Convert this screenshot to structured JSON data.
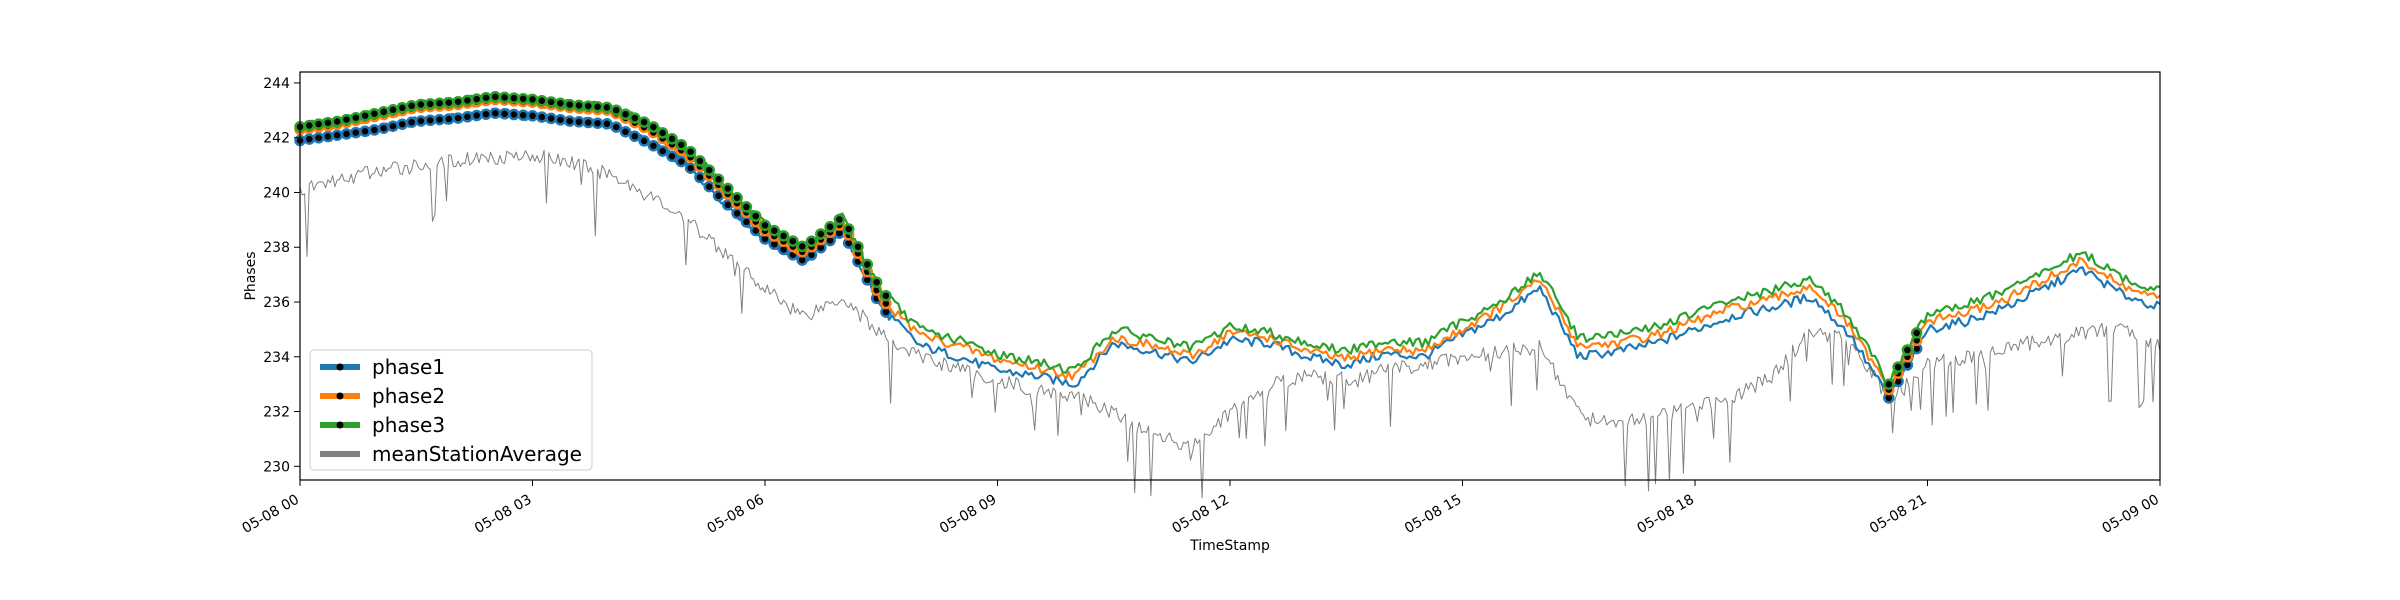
{
  "chart_data": {
    "type": "line",
    "title": "",
    "xlabel": "TimeStamp",
    "ylabel": "Phases",
    "x_range": [
      "05-08 00",
      "05-09 00"
    ],
    "x_ticks": [
      "05-08 00",
      "05-08 03",
      "05-08 06",
      "05-08 09",
      "05-08 12",
      "05-08 15",
      "05-08 18",
      "05-08 21",
      "05-09 00"
    ],
    "ylim": [
      229.5,
      244.4
    ],
    "y_ticks": [
      230,
      232,
      234,
      236,
      238,
      240,
      242,
      244
    ],
    "grid": false,
    "legend_placement": "lower-left",
    "hours": [
      0,
      0.5,
      1,
      1.5,
      2,
      2.5,
      3,
      3.5,
      4,
      4.5,
      5,
      5.5,
      6,
      6.5,
      7,
      7.5,
      8,
      8.5,
      9,
      9.5,
      10,
      10.5,
      11,
      11.5,
      12,
      12.5,
      13,
      13.5,
      14,
      14.5,
      15,
      15.5,
      16,
      16.5,
      17,
      17.5,
      18,
      18.5,
      19,
      19.5,
      20,
      20.5,
      21,
      21.5,
      22,
      22.5,
      23,
      23.5,
      24
    ],
    "series": [
      {
        "name": "phase1",
        "color": "#1f77b4",
        "marker_segments_hours": [
          [
            0,
            7.6
          ],
          [
            20.5,
            20.9
          ]
        ],
        "values": [
          241.9,
          242.1,
          242.3,
          242.6,
          242.7,
          242.9,
          242.8,
          242.6,
          242.5,
          241.8,
          241.0,
          239.6,
          238.3,
          237.5,
          238.6,
          235.8,
          234.4,
          234.0,
          233.5,
          233.3,
          233.0,
          234.5,
          234.2,
          233.8,
          234.6,
          234.5,
          234.0,
          233.7,
          234.1,
          234.0,
          234.8,
          235.5,
          236.5,
          234.0,
          234.2,
          234.5,
          235.0,
          235.5,
          235.8,
          236.2,
          234.8,
          232.5,
          235.0,
          235.3,
          235.8,
          236.5,
          237.2,
          236.3,
          235.8
        ]
      },
      {
        "name": "phase2",
        "color": "#ff7f0e",
        "marker_segments_hours": [
          [
            0,
            7.6
          ],
          [
            20.5,
            20.9
          ]
        ],
        "values": [
          242.3,
          242.5,
          242.8,
          243.1,
          243.2,
          243.4,
          243.3,
          243.1,
          243.0,
          242.3,
          241.4,
          240.0,
          238.6,
          237.8,
          238.9,
          236.1,
          234.8,
          234.4,
          233.9,
          233.6,
          233.3,
          234.7,
          234.4,
          234.0,
          234.9,
          234.7,
          234.2,
          233.9,
          234.3,
          234.2,
          235.0,
          235.8,
          236.8,
          234.4,
          234.5,
          234.8,
          235.3,
          235.8,
          236.1,
          236.6,
          235.1,
          232.8,
          235.3,
          235.6,
          236.1,
          236.8,
          237.5,
          236.6,
          236.1
        ]
      },
      {
        "name": "phase3",
        "color": "#2ca02c",
        "marker_segments_hours": [
          [
            0,
            7.6
          ],
          [
            20.5,
            20.9
          ]
        ],
        "values": [
          242.4,
          242.6,
          242.9,
          243.2,
          243.3,
          243.5,
          243.4,
          243.2,
          243.1,
          242.5,
          241.6,
          240.2,
          238.8,
          238.0,
          239.1,
          236.4,
          235.0,
          234.6,
          234.1,
          233.8,
          233.5,
          235.0,
          234.7,
          234.3,
          235.1,
          234.9,
          234.5,
          234.2,
          234.6,
          234.5,
          235.3,
          236.0,
          237.1,
          234.7,
          234.8,
          235.1,
          235.6,
          236.1,
          236.4,
          236.9,
          235.4,
          233.0,
          235.6,
          235.9,
          236.4,
          237.1,
          237.8,
          236.9,
          236.4
        ]
      },
      {
        "name": "meanStationAverage",
        "color": "#808080",
        "values": [
          240.1,
          240.5,
          240.8,
          241.0,
          241.2,
          241.3,
          241.4,
          241.1,
          240.7,
          239.9,
          239.0,
          237.8,
          236.5,
          235.5,
          236.2,
          234.8,
          234.0,
          233.6,
          233.2,
          232.8,
          232.6,
          232.0,
          231.2,
          230.8,
          232.0,
          233.0,
          233.3,
          233.2,
          233.6,
          233.8,
          234.0,
          234.2,
          234.4,
          232.0,
          231.6,
          231.8,
          232.2,
          232.6,
          233.3,
          235.0,
          234.6,
          232.5,
          233.8,
          234.0,
          234.4,
          234.6,
          234.9,
          235.1,
          234.4
        ]
      }
    ]
  }
}
